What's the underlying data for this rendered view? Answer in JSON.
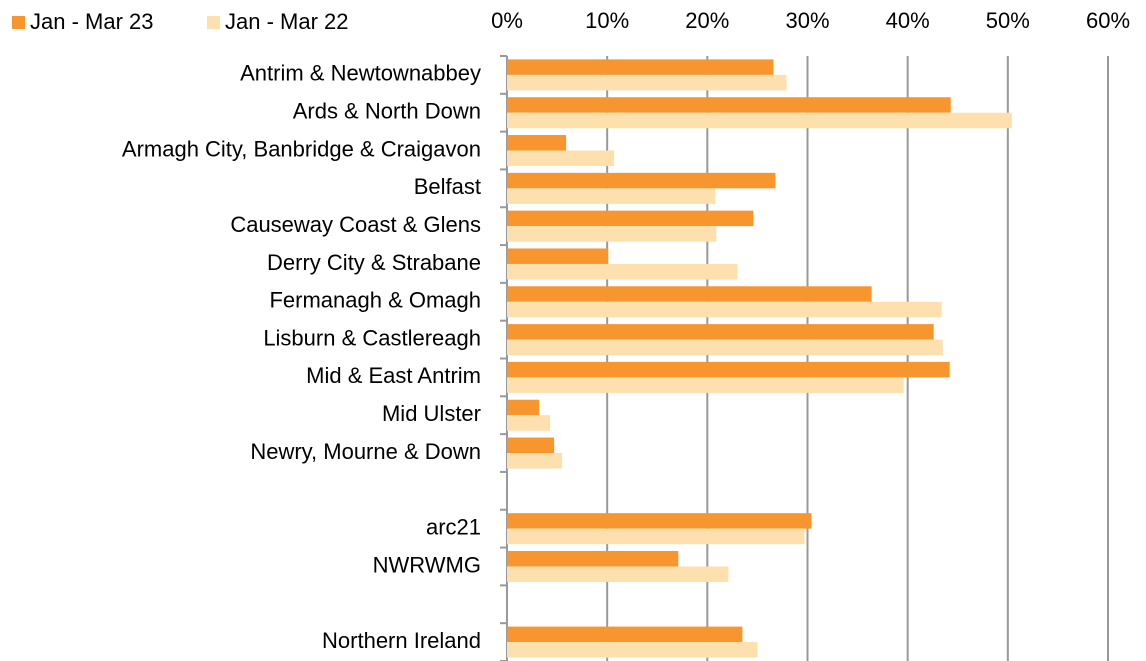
{
  "chart_data": {
    "type": "hbar",
    "categories": [
      "Antrim & Newtownabbey",
      "Ards & North Down",
      "Armagh City, Banbridge & Craigavon",
      "Belfast",
      "Causeway Coast & Glens",
      "Derry City & Strabane",
      "Fermanagh & Omagh",
      "Lisburn & Castlereagh",
      "Mid & East Antrim",
      "Mid Ulster",
      "Newry, Mourne & Down",
      null,
      "arc21",
      "NWRWMG",
      null,
      "Northern Ireland"
    ],
    "series": [
      {
        "name": "Jan - Mar 23",
        "color": "#f7962f",
        "values": [
          26.6,
          44.3,
          5.9,
          26.8,
          24.6,
          10.1,
          36.4,
          42.6,
          44.2,
          3.2,
          4.7,
          null,
          30.4,
          17.1,
          null,
          23.5
        ]
      },
      {
        "name": "Jan - Mar 22",
        "color": "#fde0ad",
        "values": [
          27.9,
          50.4,
          10.7,
          20.8,
          20.9,
          23.0,
          43.4,
          43.5,
          39.6,
          4.3,
          5.5,
          null,
          29.7,
          22.1,
          null,
          25.0
        ]
      }
    ],
    "xlim": [
      0,
      60
    ],
    "xticks": [
      {
        "value": 0,
        "label": "0%"
      },
      {
        "value": 10,
        "label": "10%"
      },
      {
        "value": 20,
        "label": "20%"
      },
      {
        "value": 30,
        "label": "30%"
      },
      {
        "value": 40,
        "label": "40%"
      },
      {
        "value": 50,
        "label": "50%"
      },
      {
        "value": 60,
        "label": "60%"
      }
    ],
    "grid": true,
    "legend": "top-left"
  }
}
